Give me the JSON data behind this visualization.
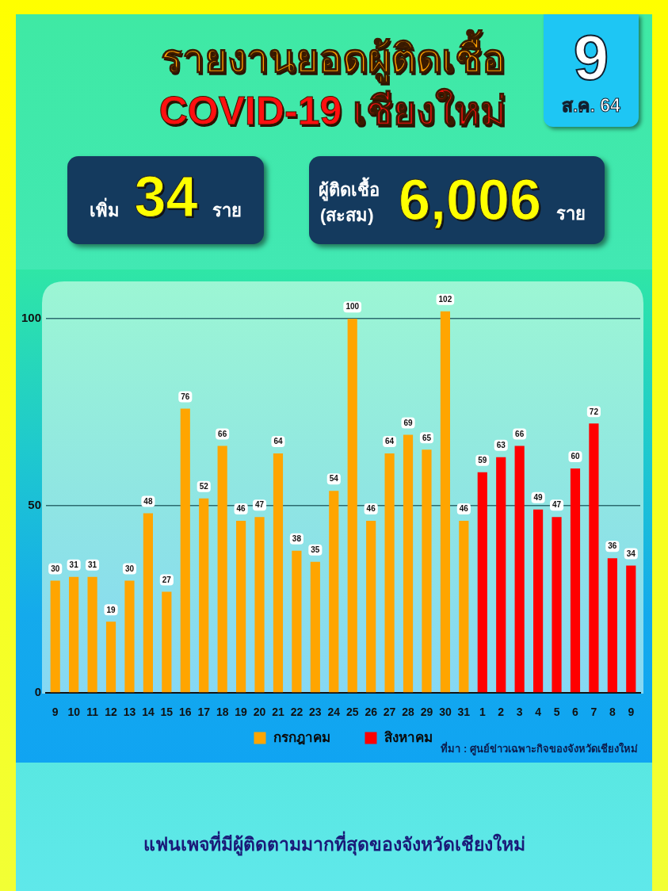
{
  "chart_data": {
    "type": "bar",
    "title": "รายงานยอดผู้ติดเชื้อ",
    "subtitle": "COVID-19 เชียงใหม่",
    "categories": [
      "9",
      "10",
      "11",
      "12",
      "13",
      "14",
      "15",
      "16",
      "17",
      "18",
      "19",
      "20",
      "21",
      "22",
      "23",
      "24",
      "25",
      "26",
      "27",
      "28",
      "29",
      "30",
      "31",
      "1",
      "2",
      "3",
      "4",
      "5",
      "6",
      "7",
      "8",
      "9"
    ],
    "series": [
      {
        "name": "กรกฎาคม",
        "color": "#ffa500",
        "values": [
          30,
          31,
          31,
          19,
          30,
          48,
          27,
          76,
          52,
          66,
          46,
          47,
          64,
          38,
          35,
          54,
          100,
          46,
          64,
          69,
          65,
          102,
          46,
          null,
          null,
          null,
          null,
          null,
          null,
          null,
          null,
          null
        ]
      },
      {
        "name": "สิงหาคม",
        "color": "#ff0000",
        "values": [
          null,
          null,
          null,
          null,
          null,
          null,
          null,
          null,
          null,
          null,
          null,
          null,
          null,
          null,
          null,
          null,
          null,
          null,
          null,
          null,
          null,
          null,
          null,
          59,
          63,
          66,
          49,
          47,
          60,
          72,
          36,
          34
        ]
      }
    ],
    "ylim": [
      0,
      110
    ],
    "yticks": [
      0,
      50,
      100
    ],
    "grid": "y",
    "legend": "bottom",
    "data_labels": true,
    "annotations": [
      "9",
      "ส.ค. 64",
      "เพิ่ม 34 ราย",
      "ผู้ติดเชื้อ",
      "(สะสม)",
      "6,006",
      "ราย",
      "ที่มา : ศูนย์ข่าวเฉพาะกิจของจังหวัดเชียงใหม่",
      "แฟนเพจที่มีผู้ติดตามมากที่สุดของจังหวัดเชียงใหม่"
    ]
  }
}
